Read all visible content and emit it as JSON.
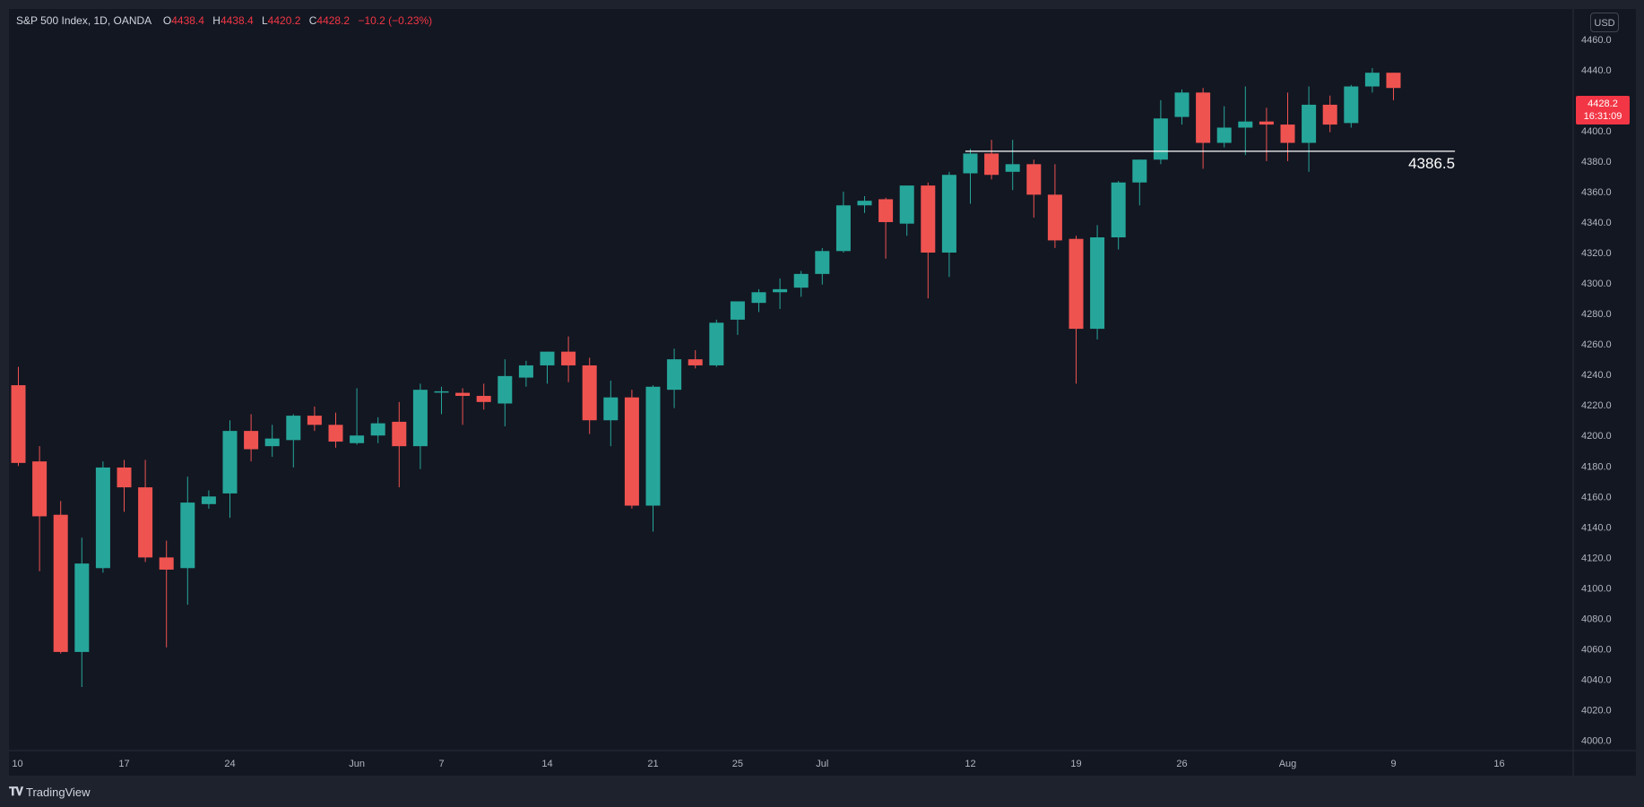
{
  "header": {
    "symbol": "S&P 500 Index, 1D, OANDA",
    "o_label": "O",
    "o_value": "4438.4",
    "h_label": "H",
    "h_value": "4438.4",
    "l_label": "L",
    "l_value": "4420.2",
    "c_label": "C",
    "c_value": "4428.2",
    "change": "−10.2 (−0.23%)"
  },
  "currency_button": "USD",
  "last_price": "4428.2",
  "countdown": "16:31:09",
  "hline_label": "4386.5",
  "brand": "TradingView",
  "colors": {
    "up": "#26a69a",
    "down": "#ef5350",
    "background": "#131722",
    "frame": "#1e222d",
    "text": "#d1d4dc",
    "grid": "#1e222d"
  },
  "chart_data": {
    "type": "candlestick",
    "symbol": "S&P 500 Index, 1D, OANDA",
    "ylim": [
      4000,
      4470
    ],
    "y_ticks": [
      4000,
      4020,
      4040,
      4060,
      4080,
      4100,
      4120,
      4140,
      4160,
      4180,
      4200,
      4220,
      4240,
      4260,
      4280,
      4300,
      4320,
      4340,
      4360,
      4380,
      4400,
      4420,
      4440,
      4460
    ],
    "x_ticks": [
      {
        "label": "10",
        "index": 0
      },
      {
        "label": "17",
        "index": 5
      },
      {
        "label": "24",
        "index": 10
      },
      {
        "label": "Jun",
        "index": 16
      },
      {
        "label": "7",
        "index": 20
      },
      {
        "label": "14",
        "index": 25
      },
      {
        "label": "21",
        "index": 30
      },
      {
        "label": "25",
        "index": 34
      },
      {
        "label": "Jul",
        "index": 38
      },
      {
        "label": "12",
        "index": 45
      },
      {
        "label": "19",
        "index": 50
      },
      {
        "label": "26",
        "index": 55
      },
      {
        "label": "Aug",
        "index": 60
      },
      {
        "label": "9",
        "index": 65
      },
      {
        "label": "16",
        "index": 70
      }
    ],
    "horizontal_line": {
      "value": 4386.5,
      "from_index": 44,
      "to_index": 66
    },
    "candles": [
      {
        "o": 4233,
        "h": 4245,
        "l": 4180,
        "c": 4182
      },
      {
        "o": 4183,
        "h": 4193,
        "l": 4111,
        "c": 4147
      },
      {
        "o": 4148,
        "h": 4157,
        "l": 4057,
        "c": 4058
      },
      {
        "o": 4058,
        "h": 4133,
        "l": 4035,
        "c": 4116
      },
      {
        "o": 4113,
        "h": 4183,
        "l": 4110,
        "c": 4179
      },
      {
        "o": 4179,
        "h": 4184,
        "l": 4150,
        "c": 4166
      },
      {
        "o": 4166,
        "h": 4184,
        "l": 4117,
        "c": 4120
      },
      {
        "o": 4120,
        "h": 4131,
        "l": 4061,
        "c": 4112
      },
      {
        "o": 4113,
        "h": 4173,
        "l": 4089,
        "c": 4156
      },
      {
        "o": 4155,
        "h": 4164,
        "l": 4152,
        "c": 4160
      },
      {
        "o": 4162,
        "h": 4210,
        "l": 4146,
        "c": 4203
      },
      {
        "o": 4203,
        "h": 4214,
        "l": 4183,
        "c": 4191
      },
      {
        "o": 4193,
        "h": 4207,
        "l": 4186,
        "c": 4198
      },
      {
        "o": 4197,
        "h": 4214,
        "l": 4179,
        "c": 4213
      },
      {
        "o": 4213,
        "h": 4219,
        "l": 4203,
        "c": 4207
      },
      {
        "o": 4207,
        "h": 4215,
        "l": 4192,
        "c": 4196
      },
      {
        "o": 4195,
        "h": 4231,
        "l": 4194,
        "c": 4200
      },
      {
        "o": 4200,
        "h": 4212,
        "l": 4195,
        "c": 4208
      },
      {
        "o": 4209,
        "h": 4222,
        "l": 4166,
        "c": 4193
      },
      {
        "o": 4193,
        "h": 4234,
        "l": 4178,
        "c": 4230
      },
      {
        "o": 4229,
        "h": 4232,
        "l": 4214,
        "c": 4229
      },
      {
        "o": 4228,
        "h": 4231,
        "l": 4207,
        "c": 4226
      },
      {
        "o": 4226,
        "h": 4234,
        "l": 4217,
        "c": 4222
      },
      {
        "o": 4221,
        "h": 4250,
        "l": 4206,
        "c": 4239
      },
      {
        "o": 4238,
        "h": 4249,
        "l": 4232,
        "c": 4246
      },
      {
        "o": 4246,
        "h": 4255,
        "l": 4234,
        "c": 4255
      },
      {
        "o": 4255,
        "h": 4265,
        "l": 4235,
        "c": 4246
      },
      {
        "o": 4246,
        "h": 4251,
        "l": 4201,
        "c": 4210
      },
      {
        "o": 4210,
        "h": 4236,
        "l": 4193,
        "c": 4225
      },
      {
        "o": 4225,
        "h": 4230,
        "l": 4152,
        "c": 4154
      },
      {
        "o": 4154,
        "h": 4233,
        "l": 4137,
        "c": 4232
      },
      {
        "o": 4230,
        "h": 4257,
        "l": 4218,
        "c": 4250
      },
      {
        "o": 4250,
        "h": 4256,
        "l": 4244,
        "c": 4246
      },
      {
        "o": 4246,
        "h": 4276,
        "l": 4245,
        "c": 4274
      },
      {
        "o": 4276,
        "h": 4288,
        "l": 4266,
        "c": 4288
      },
      {
        "o": 4287,
        "h": 4296,
        "l": 4281,
        "c": 4294
      },
      {
        "o": 4294,
        "h": 4303,
        "l": 4283,
        "c": 4296
      },
      {
        "o": 4297,
        "h": 4308,
        "l": 4291,
        "c": 4306
      },
      {
        "o": 4306,
        "h": 4323,
        "l": 4299,
        "c": 4321
      },
      {
        "o": 4321,
        "h": 4360,
        "l": 4320,
        "c": 4351
      },
      {
        "o": 4351,
        "h": 4357,
        "l": 4346,
        "c": 4354
      },
      {
        "o": 4355,
        "h": 4356,
        "l": 4316,
        "c": 4340
      },
      {
        "o": 4339,
        "h": 4364,
        "l": 4331,
        "c": 4364
      },
      {
        "o": 4364,
        "h": 4366,
        "l": 4290,
        "c": 4320
      },
      {
        "o": 4320,
        "h": 4373,
        "l": 4304,
        "c": 4371
      },
      {
        "o": 4372,
        "h": 4388,
        "l": 4352,
        "c": 4385
      },
      {
        "o": 4385,
        "h": 4394,
        "l": 4368,
        "c": 4371
      },
      {
        "o": 4373,
        "h": 4394,
        "l": 4361,
        "c": 4378
      },
      {
        "o": 4378,
        "h": 4381,
        "l": 4343,
        "c": 4358
      },
      {
        "o": 4358,
        "h": 4378,
        "l": 4323,
        "c": 4328
      },
      {
        "o": 4329,
        "h": 4331,
        "l": 4234,
        "c": 4270
      },
      {
        "o": 4270,
        "h": 4338,
        "l": 4263,
        "c": 4330
      },
      {
        "o": 4330,
        "h": 4367,
        "l": 4322,
        "c": 4366
      },
      {
        "o": 4366,
        "h": 4381,
        "l": 4351,
        "c": 4381
      },
      {
        "o": 4381,
        "h": 4420,
        "l": 4378,
        "c": 4408
      },
      {
        "o": 4409,
        "h": 4427,
        "l": 4404,
        "c": 4425
      },
      {
        "o": 4425,
        "h": 4428,
        "l": 4375,
        "c": 4392
      },
      {
        "o": 4392,
        "h": 4416,
        "l": 4389,
        "c": 4402
      },
      {
        "o": 4402,
        "h": 4429,
        "l": 4384,
        "c": 4406
      },
      {
        "o": 4406,
        "h": 4415,
        "l": 4380,
        "c": 4404
      },
      {
        "o": 4404,
        "h": 4425,
        "l": 4380,
        "c": 4392
      },
      {
        "o": 4392,
        "h": 4429,
        "l": 4373,
        "c": 4417
      },
      {
        "o": 4417,
        "h": 4423,
        "l": 4399,
        "c": 4404
      },
      {
        "o": 4405,
        "h": 4430,
        "l": 4402,
        "c": 4429
      },
      {
        "o": 4429,
        "h": 4441,
        "l": 4425,
        "c": 4438
      },
      {
        "o": 4438,
        "h": 4438,
        "l": 4420,
        "c": 4428
      }
    ]
  }
}
